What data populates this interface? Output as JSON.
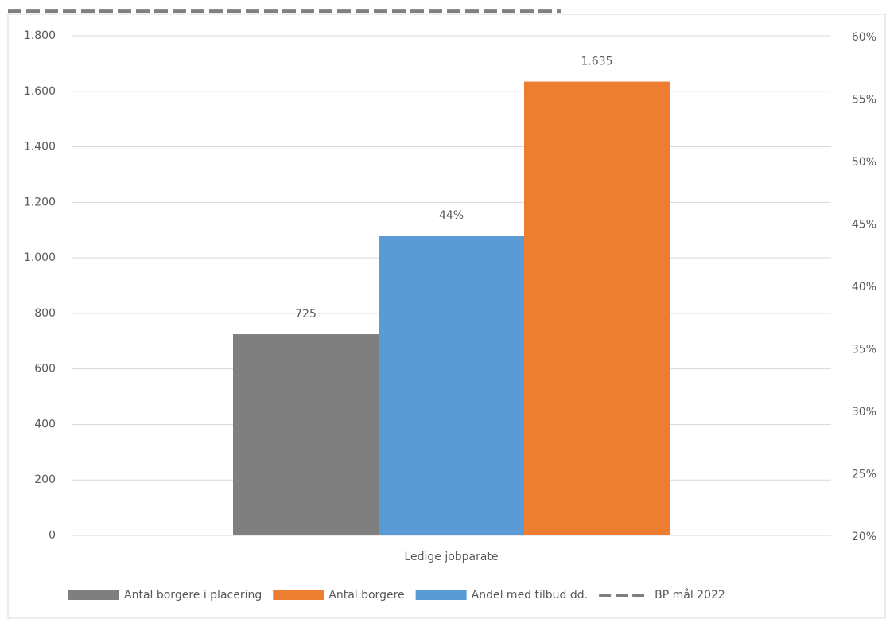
{
  "chart_data": {
    "type": "bar",
    "categories": [
      "Ledige jobparate"
    ],
    "series": [
      {
        "name": "Antal borgere i placering",
        "color": "#7f7f7f",
        "values": [
          725
        ],
        "value_labels": [
          "725"
        ]
      },
      {
        "name": "Antal borgere",
        "color": "#ed7d31",
        "values": [
          1635
        ],
        "value_labels": [
          "1.635"
        ]
      },
      {
        "name": "Andel med tilbud dd.",
        "color": "#5b9bd5",
        "values": [
          44
        ],
        "value_labels": [
          "44%"
        ],
        "axis": "y2"
      },
      {
        "name": "BP mål 2022",
        "color": "#7f7f7f",
        "values": [
          62
        ],
        "axis": "y2",
        "type": "line",
        "dashed": true
      }
    ],
    "ylim": [
      0,
      1800
    ],
    "yticks": [
      0,
      200,
      400,
      600,
      800,
      {
        "value": 1000,
        "label": "1.000"
      },
      {
        "value": 1200,
        "label": "1.200"
      },
      {
        "value": 1400,
        "label": "1.400"
      },
      {
        "value": 1600,
        "label": "1.600"
      },
      {
        "value": 1800,
        "label": "1.800"
      }
    ],
    "y2lim": [
      20,
      60
    ],
    "y2ticks": [
      {
        "value": 20,
        "label": "20%"
      },
      {
        "value": 25,
        "label": "25%"
      },
      {
        "value": 30,
        "label": "30%"
      },
      {
        "value": 35,
        "label": "35%"
      },
      {
        "value": 40,
        "label": "40%"
      },
      {
        "value": 45,
        "label": "45%"
      },
      {
        "value": 50,
        "label": "50%"
      },
      {
        "value": 55,
        "label": "55%"
      },
      {
        "value": 60,
        "label": "60%"
      }
    ],
    "grid": true,
    "legend": "bottom"
  }
}
